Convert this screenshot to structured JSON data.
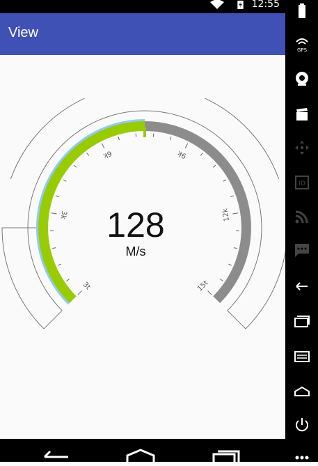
{
  "status_bar": {
    "time": "12:55",
    "icons": [
      "wifi-icon",
      "battery-icon"
    ]
  },
  "app_bar": {
    "title": "View"
  },
  "gauge": {
    "value": 128,
    "unit": "M/s",
    "tick_labels": [
      "3t",
      "3k",
      "6k",
      "9k",
      "12k",
      "15t"
    ],
    "progress_fraction": 0.5,
    "colors": {
      "progress": "#99cc00",
      "progress_halo": "#90caf9",
      "remaining": "#8c8c8c",
      "outline": "#777777"
    }
  },
  "side_panel": {
    "icons": [
      "battery-icon",
      "gps-icon",
      "camera-icon",
      "clapper-icon",
      "move-icon",
      "id-icon",
      "cast-icon",
      "message-icon",
      "back-icon",
      "recents-icon",
      "menu-icon",
      "home-icon",
      "power-icon",
      "more-icon"
    ]
  },
  "nav_bar": {
    "icons": [
      "back-icon",
      "home-icon",
      "recents-icon"
    ]
  }
}
